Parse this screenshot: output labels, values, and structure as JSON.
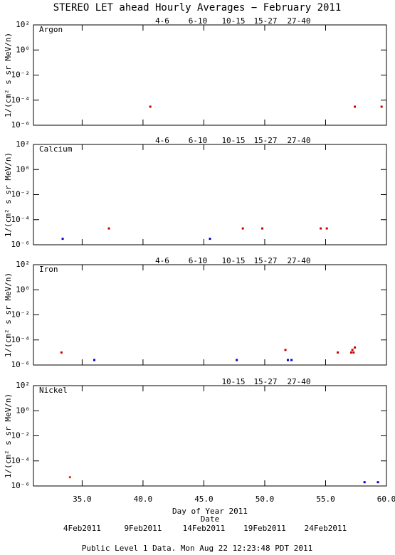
{
  "title": "STEREO LET ahead Hourly Averages − February 2011",
  "footer": "Public Level 1 Data. Mon Aug 22 12:23:48 PDT 2011",
  "chart_data": [
    {
      "type": "scatter",
      "title": "Argon",
      "ylabel": "1/(cm² s sr MeV/n)",
      "log_y": true,
      "xlim": [
        31,
        60
      ],
      "ylim": [
        1e-06,
        100
      ],
      "yticks": [
        {
          "value": 100,
          "label": "10²"
        },
        {
          "value": 1,
          "label": "10⁰"
        },
        {
          "value": 0.01,
          "label": "10⁻²"
        },
        {
          "value": 0.0001,
          "label": "10⁻⁴"
        },
        {
          "value": 1e-06,
          "label": "10⁻⁶"
        }
      ],
      "series": [
        {
          "name": "4-6",
          "color": "#cc0000",
          "x": [
            40.6,
            57.4,
            59.6
          ],
          "values": [
            3e-05,
            3e-05,
            3e-05
          ]
        },
        {
          "name": "6-10",
          "color": "#ff2a00",
          "x": [],
          "values": []
        },
        {
          "name": "10-15",
          "color": "#9a9a9a",
          "x": [],
          "values": []
        },
        {
          "name": "15-27",
          "color": "#0000cc",
          "x": [],
          "values": []
        },
        {
          "name": "27-40",
          "color": "#000000",
          "x": [],
          "values": []
        }
      ]
    },
    {
      "type": "scatter",
      "title": "Calcium",
      "ylabel": "1/(cm² s sr MeV/n)",
      "log_y": true,
      "xlim": [
        31,
        60
      ],
      "ylim": [
        1e-06,
        100
      ],
      "yticks": [
        {
          "value": 100,
          "label": "10²"
        },
        {
          "value": 1,
          "label": "10⁰"
        },
        {
          "value": 0.01,
          "label": "10⁻²"
        },
        {
          "value": 0.0001,
          "label": "10⁻⁴"
        },
        {
          "value": 1e-06,
          "label": "10⁻⁶"
        }
      ],
      "series": [
        {
          "name": "4-6",
          "color": "#cc0000",
          "x": [
            37.2,
            48.2,
            49.8,
            54.6,
            55.1
          ],
          "values": [
            2e-05,
            2e-05,
            2e-05,
            2e-05,
            2e-05
          ]
        },
        {
          "name": "6-10",
          "color": "#ff2a00",
          "x": [],
          "values": []
        },
        {
          "name": "10-15",
          "color": "#9a9a9a",
          "x": [],
          "values": []
        },
        {
          "name": "15-27",
          "color": "#0000cc",
          "x": [
            33.4,
            45.5
          ],
          "values": [
            3e-06,
            3e-06
          ]
        },
        {
          "name": "27-40",
          "color": "#000000",
          "x": [],
          "values": []
        }
      ]
    },
    {
      "type": "scatter",
      "title": "Iron",
      "ylabel": "1/(cm² s sr MeV/n)",
      "log_y": true,
      "xlim": [
        31,
        60
      ],
      "ylim": [
        1e-06,
        100
      ],
      "yticks": [
        {
          "value": 100,
          "label": "10²"
        },
        {
          "value": 1,
          "label": "10⁰"
        },
        {
          "value": 0.01,
          "label": "10⁻²"
        },
        {
          "value": 0.0001,
          "label": "10⁻⁴"
        },
        {
          "value": 1e-06,
          "label": "10⁻⁶"
        }
      ],
      "series": [
        {
          "name": "4-6",
          "color": "#cc0000",
          "x": [
            33.3,
            51.7,
            56.0,
            57.1,
            57.3,
            57.2,
            57.4
          ],
          "values": [
            1e-05,
            1.6e-05,
            1e-05,
            1e-05,
            1e-05,
            1.6e-05,
            2.5e-05
          ]
        },
        {
          "name": "6-10",
          "color": "#ff2a00",
          "x": [],
          "values": []
        },
        {
          "name": "10-15",
          "color": "#9a9a9a",
          "x": [],
          "values": []
        },
        {
          "name": "15-27",
          "color": "#0000cc",
          "x": [
            36.0,
            47.7,
            51.9,
            52.2
          ],
          "values": [
            2.5e-06,
            2.5e-06,
            2.5e-06,
            2.5e-06
          ]
        },
        {
          "name": "27-40",
          "color": "#000000",
          "x": [],
          "values": []
        }
      ]
    },
    {
      "type": "scatter",
      "title": "Nickel",
      "ylabel": "1/(cm² s sr MeV/n)",
      "log_y": true,
      "xlabel": "Day of Year 2011",
      "x2label": "Date",
      "xlim": [
        31,
        60
      ],
      "ylim": [
        1e-06,
        100
      ],
      "xticks": [
        {
          "value": 35,
          "label": "35.0"
        },
        {
          "value": 40,
          "label": "40.0"
        },
        {
          "value": 45,
          "label": "45.0"
        },
        {
          "value": 50,
          "label": "50.0"
        },
        {
          "value": 55,
          "label": "55.0"
        },
        {
          "value": 60,
          "label": "60.0"
        }
      ],
      "x2ticks": [
        {
          "value": 35,
          "label": "4Feb2011"
        },
        {
          "value": 40,
          "label": "9Feb2011"
        },
        {
          "value": 45,
          "label": "14Feb2011"
        },
        {
          "value": 50,
          "label": "19Feb2011"
        },
        {
          "value": 55,
          "label": "24Feb2011"
        }
      ],
      "yticks": [
        {
          "value": 100,
          "label": "10²"
        },
        {
          "value": 1,
          "label": "10⁰"
        },
        {
          "value": 0.01,
          "label": "10⁻²"
        },
        {
          "value": 0.0001,
          "label": "10⁻⁴"
        },
        {
          "value": 1e-06,
          "label": "10⁻⁶"
        }
      ],
      "series": [
        {
          "name": "10-15",
          "color": "#cc4400",
          "x": [
            34.0
          ],
          "values": [
            5e-06
          ]
        },
        {
          "name": "15-27",
          "color": "#0000cc",
          "x": [
            58.2,
            59.3
          ],
          "values": [
            2e-06,
            2e-06
          ]
        },
        {
          "name": "27-40",
          "color": "#000000",
          "x": [],
          "values": []
        }
      ]
    }
  ]
}
